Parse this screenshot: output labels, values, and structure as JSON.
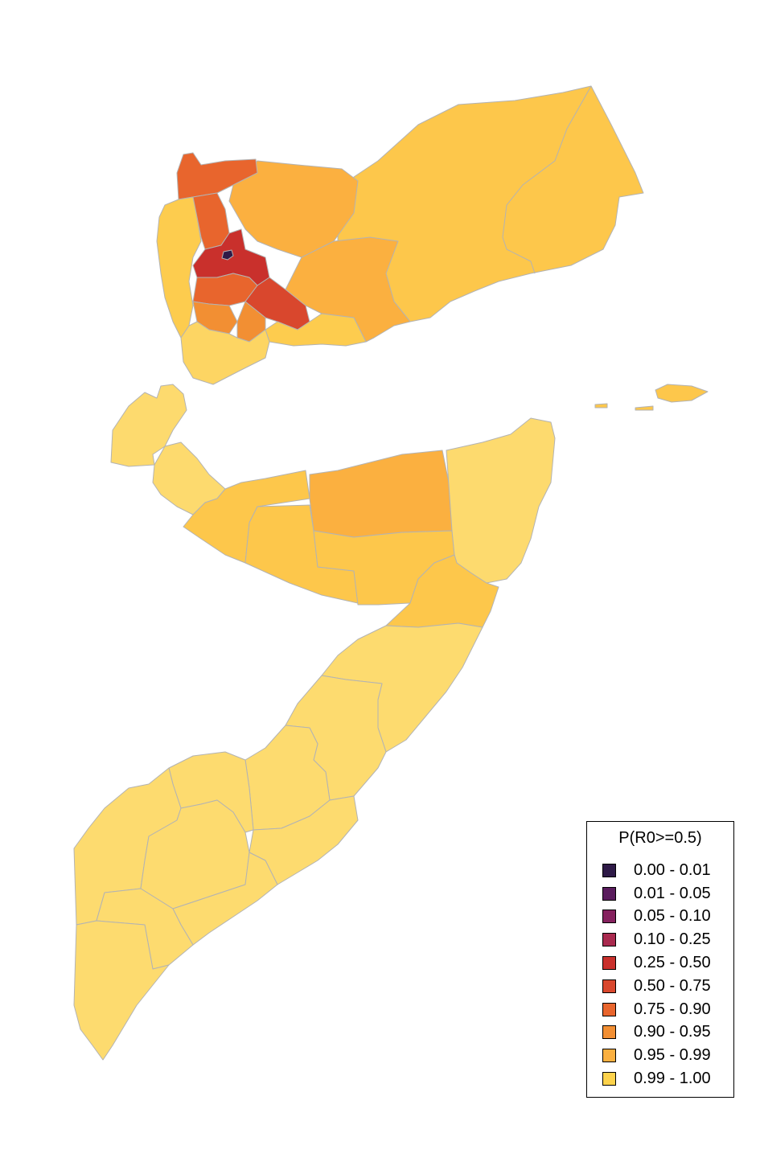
{
  "legend": {
    "title": "P(R0>=0.5)",
    "items": [
      {
        "label": "0.00 - 0.01",
        "color": "#2e1a47"
      },
      {
        "label": "0.01 - 0.05",
        "color": "#5a1c5d"
      },
      {
        "label": "0.05 - 0.10",
        "color": "#85215e"
      },
      {
        "label": "0.10 - 0.25",
        "color": "#a92a4f"
      },
      {
        "label": "0.25 - 0.50",
        "color": "#c9302c"
      },
      {
        "label": "0.50 - 0.75",
        "color": "#d9472d"
      },
      {
        "label": "0.75 - 0.90",
        "color": "#e8652d"
      },
      {
        "label": "0.90 - 0.95",
        "color": "#f28f33"
      },
      {
        "label": "0.95 - 0.99",
        "color": "#fbb040"
      },
      {
        "label": "0.99 - 1.00",
        "color": "#fdd24b"
      }
    ]
  },
  "map": {
    "region_fill_classes": [
      "0.99 - 1.00",
      "0.95 - 0.99",
      "0.90 - 0.95",
      "0.75 - 0.90",
      "0.50 - 0.75",
      "0.25 - 0.50"
    ],
    "somaliland_fill": "#fdda6e",
    "somalia_south_fill": "#fddb6f",
    "border_color": "#b3b3b3"
  }
}
